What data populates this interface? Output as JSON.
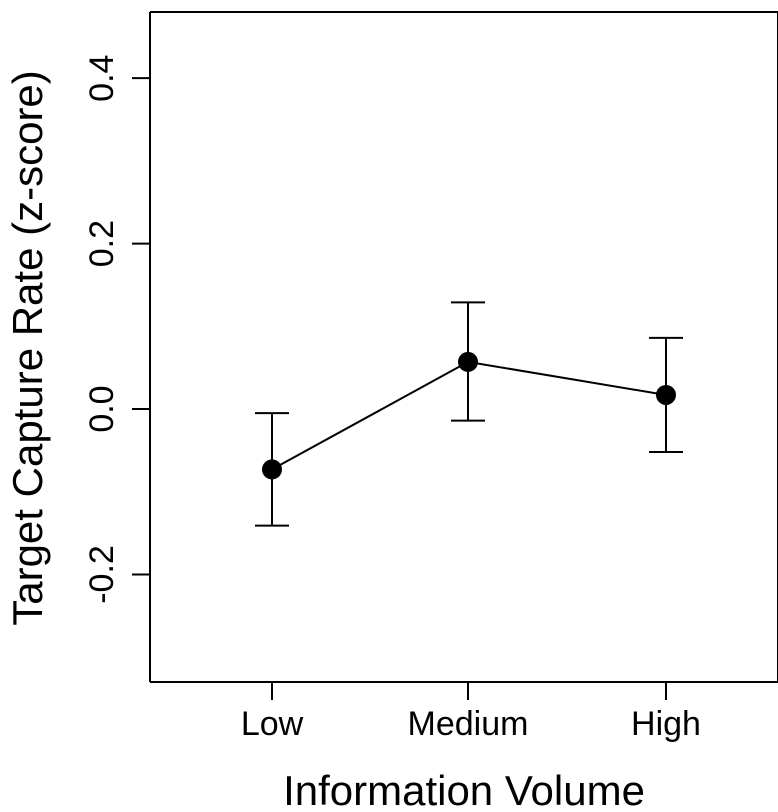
{
  "chart_data": {
    "type": "line",
    "xlabel": "Information Volume",
    "ylabel": "Target Capture Rate (z-score)",
    "categories": [
      "Low",
      "Medium",
      "High"
    ],
    "y_ticks": [
      "-0.2",
      "0.0",
      "0.2",
      "0.4"
    ],
    "y_tick_values": [
      -0.2,
      0.0,
      0.2,
      0.4
    ],
    "ylim": [
      -0.33,
      0.48
    ],
    "grid": false,
    "legend": "none",
    "series": [
      {
        "values": [
          -0.073,
          0.057,
          0.017
        ],
        "error_lower": [
          -0.141,
          -0.014,
          -0.052
        ],
        "error_upper": [
          -0.005,
          0.129,
          0.086
        ]
      }
    ],
    "colors": {
      "line": "#000000",
      "marker": "#000000",
      "axis": "#000000"
    }
  }
}
